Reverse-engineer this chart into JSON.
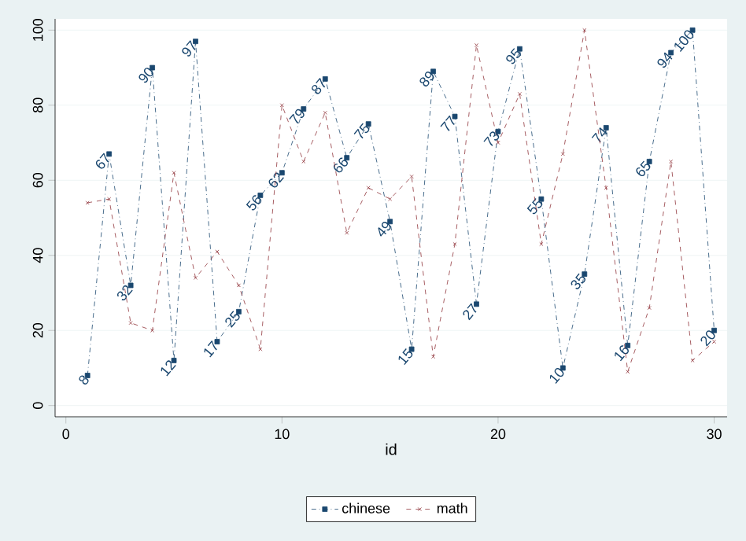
{
  "chart_data": {
    "type": "line",
    "xlabel": "id",
    "x": [
      1,
      2,
      3,
      4,
      5,
      6,
      7,
      8,
      9,
      10,
      11,
      12,
      13,
      14,
      15,
      16,
      17,
      18,
      19,
      20,
      21,
      22,
      23,
      24,
      25,
      26,
      27,
      28,
      29,
      30
    ],
    "series": [
      {
        "name": "chinese",
        "color": "#1a476f",
        "marker": "square",
        "line_style": "dotted",
        "values": [
          8,
          67,
          32,
          90,
          12,
          97,
          17,
          25,
          56,
          62,
          79,
          87,
          66,
          75,
          49,
          15,
          89,
          77,
          27,
          73,
          95,
          55,
          10,
          35,
          74,
          16,
          65,
          94,
          100,
          20
        ],
        "value_labels": [
          "8",
          "67",
          "32",
          "90",
          "12",
          "97",
          "17",
          "25",
          "56",
          "62",
          "79",
          "87",
          "66",
          "75",
          "49",
          "15",
          "89",
          "77",
          "27",
          "73",
          "95",
          "55",
          "10",
          "35",
          "74",
          "16",
          "65",
          "94",
          "100",
          "20"
        ]
      },
      {
        "name": "math",
        "color": "#90353b",
        "marker": "cross",
        "line_style": "dashed",
        "values": [
          54,
          55,
          22,
          20,
          62,
          34,
          41,
          32,
          15,
          80,
          65,
          78,
          46,
          58,
          55,
          61,
          13,
          43,
          96,
          70,
          83,
          43,
          67,
          100,
          58,
          9,
          26,
          65,
          12,
          17
        ]
      }
    ],
    "xlim": [
      -0.5,
      30.6
    ],
    "ylim": [
      -3,
      103
    ],
    "xticks": [
      0,
      10,
      20,
      30
    ],
    "yticks": [
      0,
      20,
      40,
      60,
      80,
      100
    ],
    "grid": "y",
    "legend": "bottom"
  }
}
